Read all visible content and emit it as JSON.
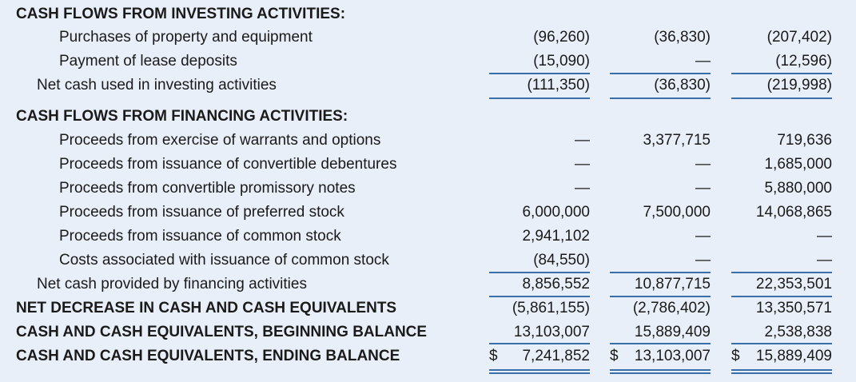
{
  "investing": {
    "heading": "CASH FLOWS FROM INVESTING ACTIVITIES:",
    "rows": [
      {
        "label": "Purchases of property and equipment",
        "v1": "(96,260)",
        "v2": "(36,830)",
        "v3": "(207,402)"
      },
      {
        "label": "Payment of lease deposits",
        "v1": "(15,090)",
        "v2": "—",
        "v3": "(12,596)"
      }
    ],
    "net": {
      "label": "Net cash used in investing activities",
      "v1": "(111,350)",
      "v2": "(36,830)",
      "v3": "(219,998)"
    }
  },
  "financing": {
    "heading": "CASH FLOWS FROM FINANCING ACTIVITIES:",
    "rows": [
      {
        "label": "Proceeds from exercise of warrants and options",
        "v1": "—",
        "v2": "3,377,715",
        "v3": "719,636"
      },
      {
        "label": "Proceeds from issuance of convertible debentures",
        "v1": "—",
        "v2": "—",
        "v3": "1,685,000"
      },
      {
        "label": "Proceeds from convertible promissory notes",
        "v1": "—",
        "v2": "—",
        "v3": "5,880,000"
      },
      {
        "label": "Proceeds from issuance of preferred stock",
        "v1": "6,000,000",
        "v2": "7,500,000",
        "v3": "14,068,865"
      },
      {
        "label": "Proceeds from issuance of common stock",
        "v1": "2,941,102",
        "v2": "—",
        "v3": "—"
      },
      {
        "label": "Costs associated with issuance of common stock",
        "v1": "(84,550)",
        "v2": "—",
        "v3": "—"
      }
    ],
    "net": {
      "label": "Net cash provided by financing activities",
      "v1": "8,856,552",
      "v2": "10,877,715",
      "v3": "22,353,501"
    }
  },
  "totals": [
    {
      "label": "NET DECREASE IN CASH AND CASH EQUIVALENTS",
      "v1": "(5,861,155)",
      "v2": "(2,786,402)",
      "v3": "13,350,571"
    },
    {
      "label": "CASH AND CASH EQUIVALENTS, BEGINNING BALANCE",
      "v1": "13,103,007",
      "v2": "15,889,409",
      "v3": "2,538,838"
    },
    {
      "label": "CASH AND CASH EQUIVALENTS, ENDING BALANCE",
      "v1": "7,241,852",
      "v2": "13,103,007",
      "v3": "15,889,409",
      "dollar": "$"
    }
  ],
  "colors": {
    "rule": "#3a6ea8",
    "background": "#e8eff8"
  }
}
